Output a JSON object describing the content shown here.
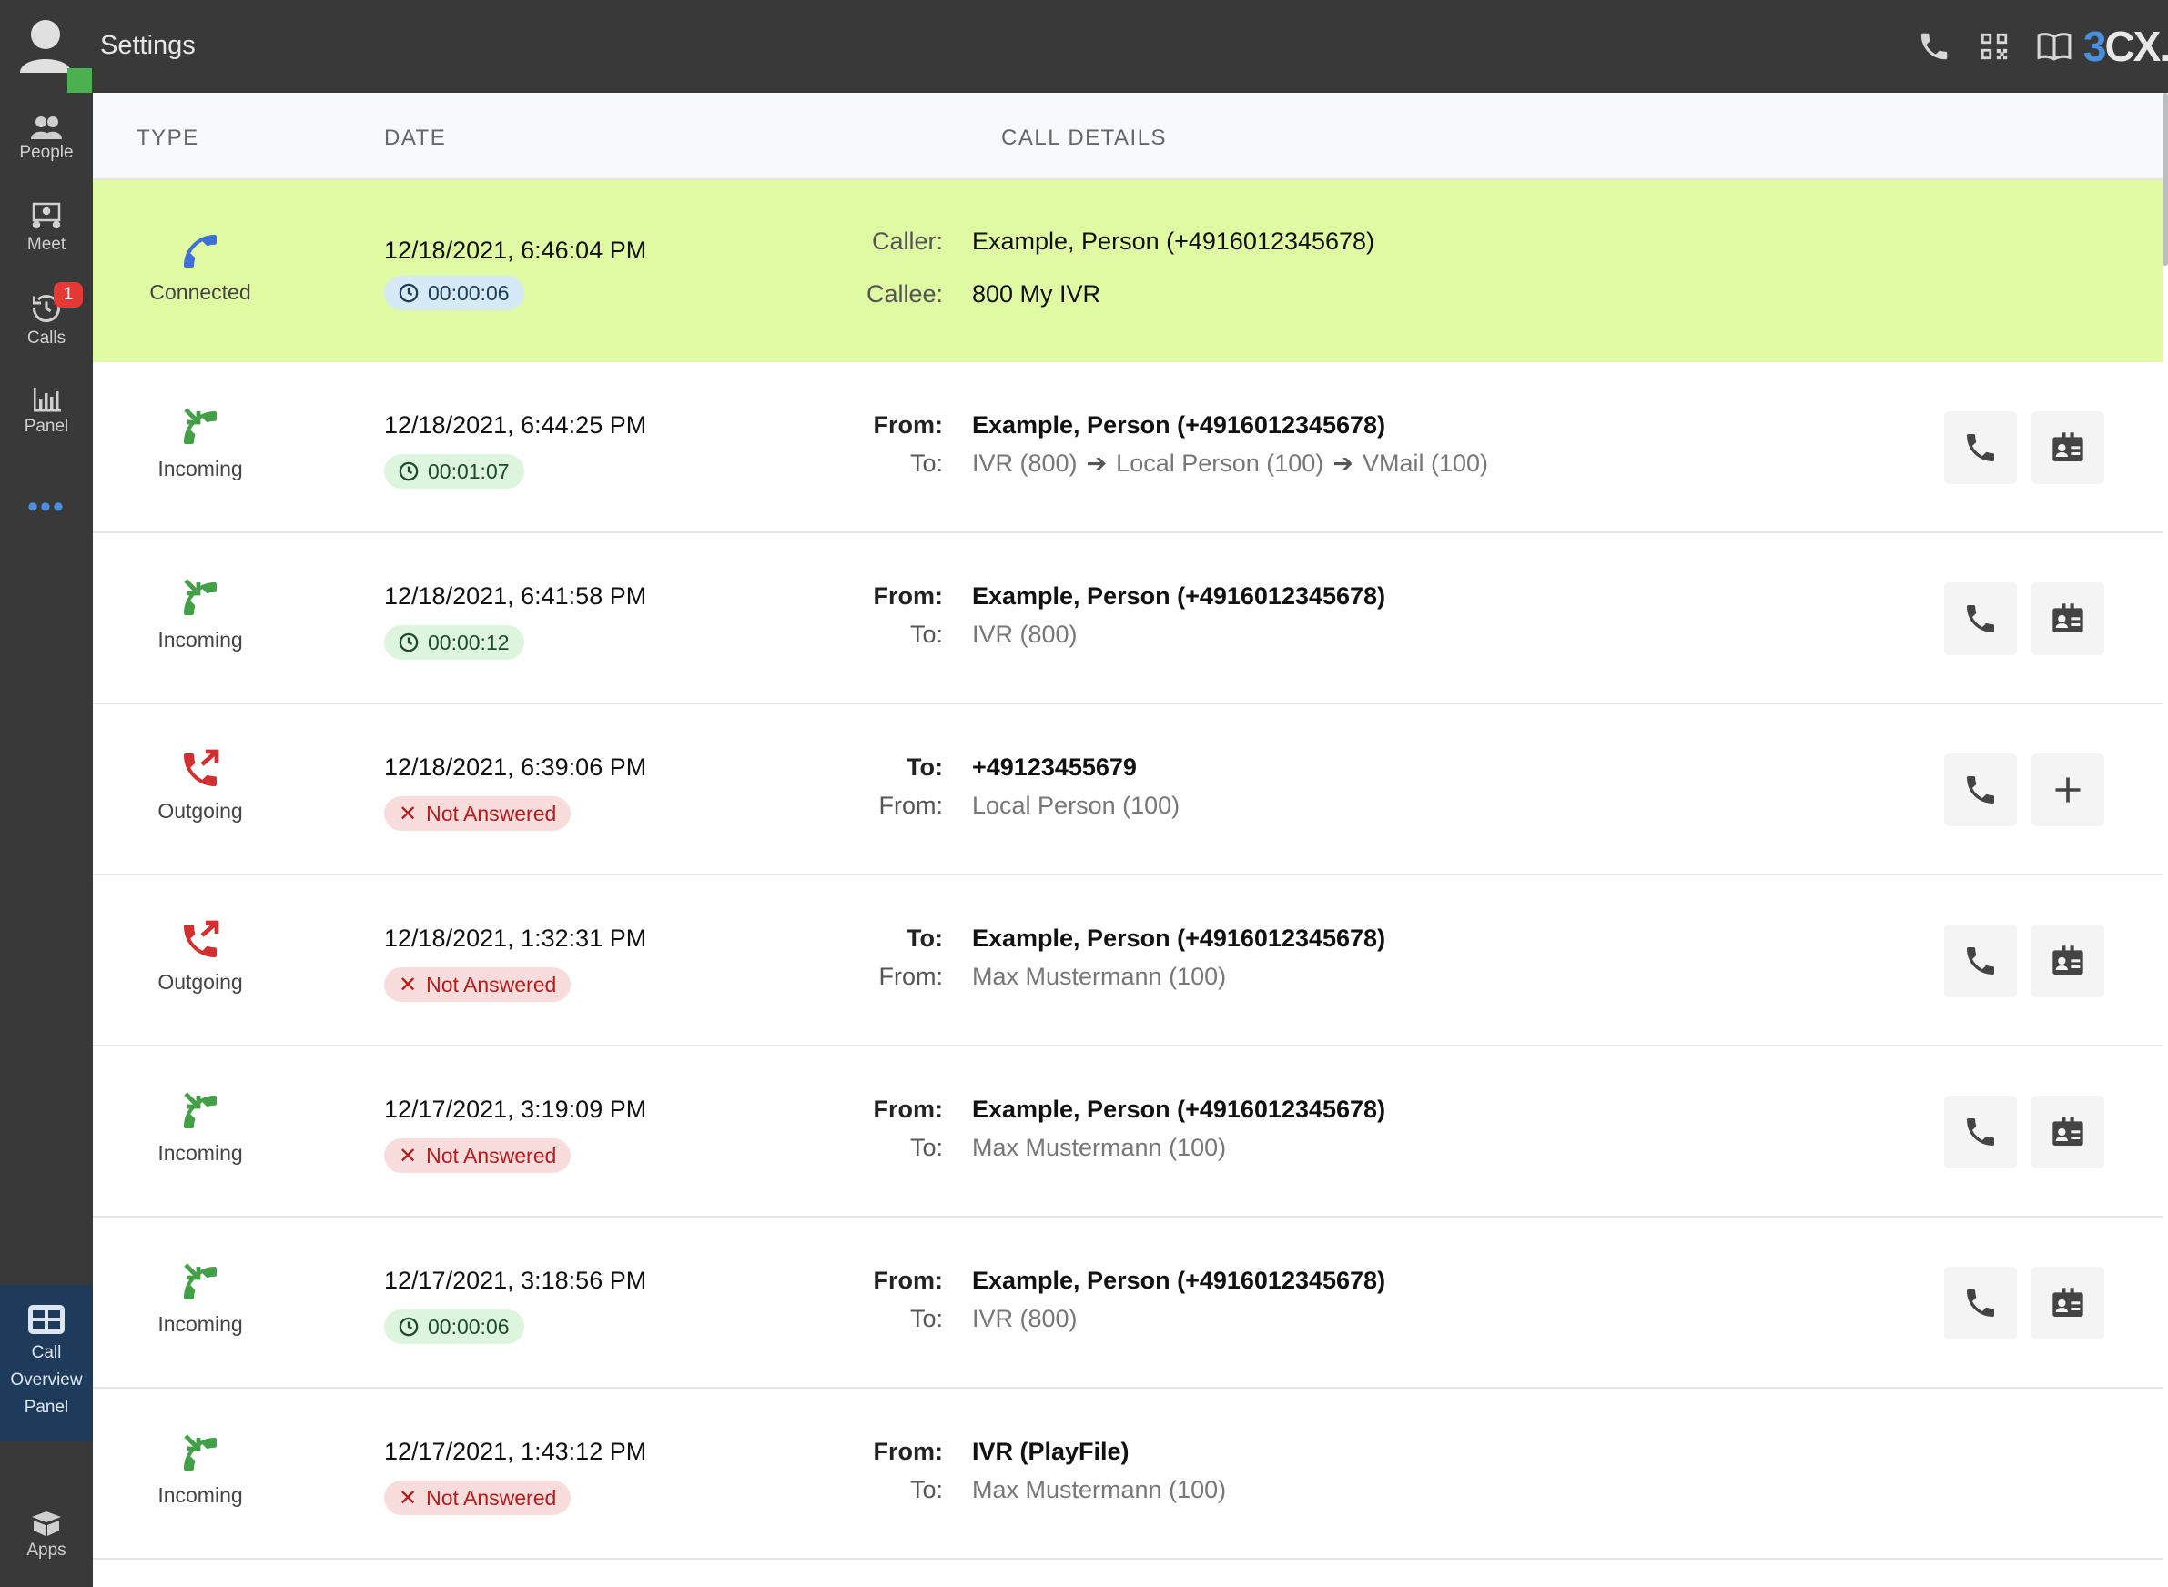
{
  "topbar": {
    "title": "Settings",
    "brand_prefix": "3",
    "brand_suffix": "CX."
  },
  "sidebar": {
    "items": [
      {
        "label": "People"
      },
      {
        "label": "Meet"
      },
      {
        "label": "Calls",
        "badge": "1"
      },
      {
        "label": "Panel"
      }
    ],
    "more": "•••",
    "active": {
      "line1": "Call",
      "line2": "Overview",
      "line3": "Panel"
    },
    "apps": "Apps"
  },
  "table": {
    "headers": {
      "type": "TYPE",
      "date": "DATE",
      "details": "CALL DETAILS"
    },
    "rows": [
      {
        "type": "Connected",
        "date": "12/18/2021, 6:46:04 PM",
        "duration": "00:00:06",
        "l1": "Caller:",
        "v1": "Example, Person (+4916012345678)",
        "l2": "Callee:",
        "v2": "800 My IVR"
      },
      {
        "type": "Incoming",
        "date": "12/18/2021, 6:44:25 PM",
        "duration": "00:01:07",
        "l1": "From:",
        "v1": "Example, Person (+4916012345678)",
        "l2": "To:",
        "v2a": "IVR (800)",
        "v2b": "Local Person (100)",
        "v2c": "VMail (100)"
      },
      {
        "type": "Incoming",
        "date": "12/18/2021, 6:41:58 PM",
        "duration": "00:00:12",
        "l1": "From:",
        "v1": "Example, Person (+4916012345678)",
        "l2": "To:",
        "v2": "IVR (800)"
      },
      {
        "type": "Outgoing",
        "date": "12/18/2021, 6:39:06 PM",
        "status": "Not Answered",
        "l1": "To:",
        "v1": "+49123455679",
        "l2": "From:",
        "v2": "Local Person (100)"
      },
      {
        "type": "Outgoing",
        "date": "12/18/2021, 1:32:31 PM",
        "status": "Not Answered",
        "l1": "To:",
        "v1": "Example, Person (+4916012345678)",
        "l2": "From:",
        "v2": "Max Mustermann (100)"
      },
      {
        "type": "Incoming",
        "date": "12/17/2021, 3:19:09 PM",
        "status": "Not Answered",
        "l1": "From:",
        "v1": "Example, Person (+4916012345678)",
        "l2": "To:",
        "v2": "Max Mustermann (100)"
      },
      {
        "type": "Incoming",
        "date": "12/17/2021, 3:18:56 PM",
        "duration": "00:00:06",
        "l1": "From:",
        "v1": "Example, Person (+4916012345678)",
        "l2": "To:",
        "v2": "IVR (800)"
      },
      {
        "type": "Incoming",
        "date": "12/17/2021, 1:43:12 PM",
        "status": "Not Answered",
        "l1": "From:",
        "v1": "IVR (PlayFile)",
        "l2": "To:",
        "v2": "Max Mustermann (100)"
      }
    ]
  },
  "colors": {
    "incoming": "#43a047",
    "outgoing": "#d32f2f",
    "connected": "#3f6fd8",
    "highlight": "#e0f9a3"
  }
}
